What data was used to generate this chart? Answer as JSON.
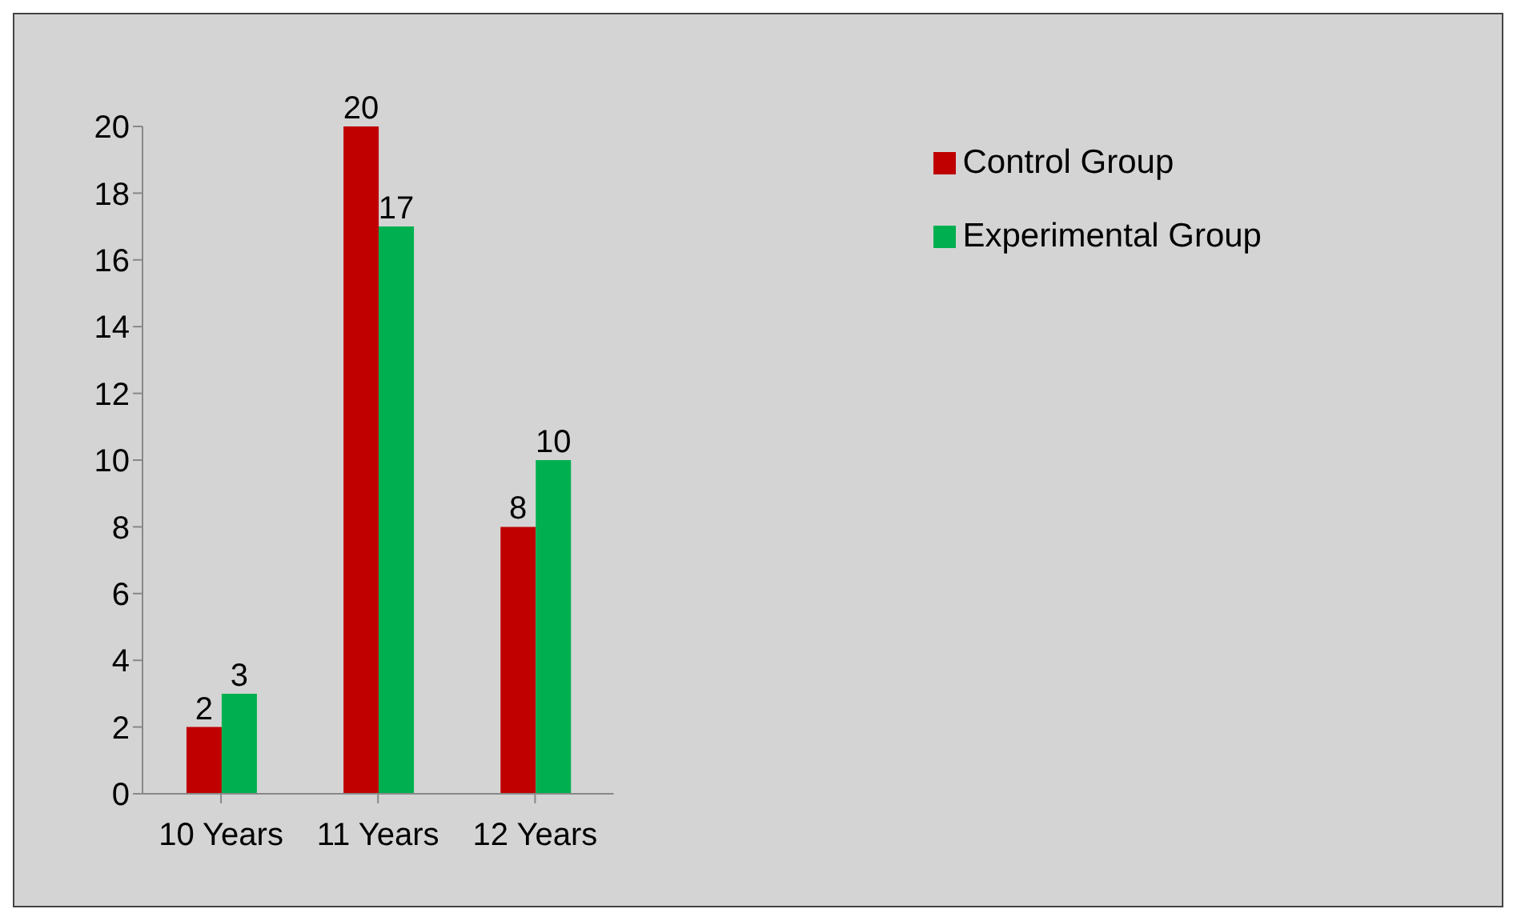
{
  "chart_data": {
    "type": "bar",
    "categories": [
      "10 Years",
      "11 Years",
      "12 Years"
    ],
    "series": [
      {
        "name": "Control Group",
        "color": "#c00000",
        "values": [
          2,
          20,
          8
        ]
      },
      {
        "name": "Experimental Group",
        "color": "#00b050",
        "values": [
          3,
          17,
          10
        ]
      }
    ],
    "ylim": [
      0,
      20
    ],
    "yticks": [
      0,
      2,
      4,
      6,
      8,
      10,
      12,
      14,
      16,
      18,
      20
    ],
    "grid": false,
    "legend": "top right",
    "data_labels": true
  }
}
